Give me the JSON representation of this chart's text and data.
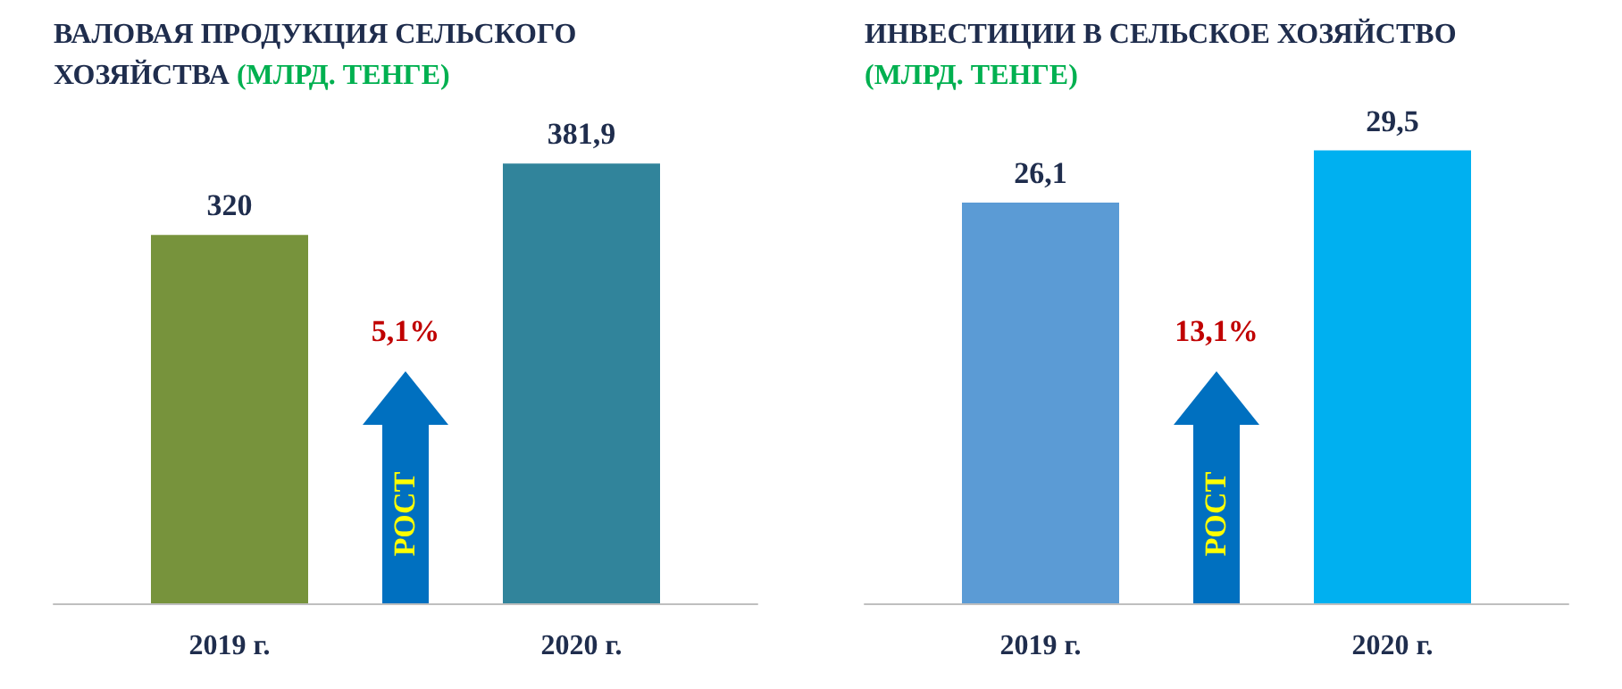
{
  "chart_data": [
    {
      "type": "bar",
      "title": "ВАЛОВАЯ ПРОДУКЦИЯ  СЕЛЬСКОГО ХОЗЯЙСТВА",
      "subtitle": "(МЛРД. ТЕНГЕ)",
      "categories": [
        "2019 г.",
        "2020 г."
      ],
      "values": [
        320,
        381.9
      ],
      "colors": [
        "#77933c",
        "#31849b"
      ],
      "value_labels": [
        "320",
        "381,9"
      ],
      "annotations": [
        "5,1%",
        "РОСТ"
      ]
    },
    {
      "type": "bar",
      "title": "ИНВЕСТИЦИИ  В СЕЛЬСКОЕ ХОЗЯЙСТВО",
      "subtitle": "(МЛРД. ТЕНГЕ)",
      "categories": [
        "2019 г.",
        "2020 г."
      ],
      "values": [
        26.1,
        29.5
      ],
      "colors": [
        "#5b9bd5",
        "#00b0f0"
      ],
      "value_labels": [
        "26,1",
        "29,5"
      ],
      "annotations": [
        "13,1%",
        "РОСТ"
      ]
    }
  ]
}
